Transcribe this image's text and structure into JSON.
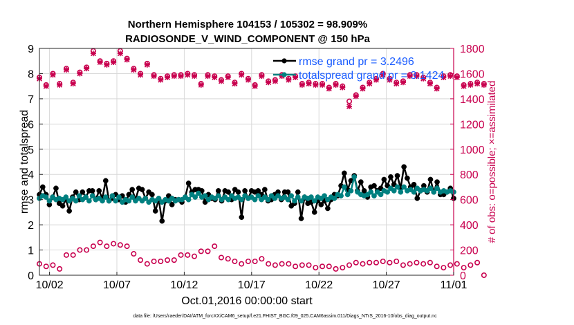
{
  "title_line1": "Northern Hemisphere 104153 / 105302 = 98.909%",
  "title_line2": "RADIOSONDE_V_WIND_COMPONENT @ 150 hPa",
  "xlabel": "Oct.01,2016 00:00:00 start",
  "ylabel_left": "rmse and totalspread",
  "ylabel_right": "# of obs: o=possible; ×=assimilated",
  "footer": "data file: /Users/raeder/DAI/ATM_forcXX/CAM6_setup/f.e21.FHIST_BGC.f09_025.CAM6assim.011/Diags_NTrS_2016-10/obs_diag_output.nc",
  "colors": {
    "rmse": "#000000",
    "spread": "#008080",
    "obs": "#c8004e",
    "legend_text": "#1a5cff"
  },
  "chart_data": {
    "type": "line",
    "x_ticks": [
      {
        "label": "10/02",
        "day": 2
      },
      {
        "label": "10/07",
        "day": 7
      },
      {
        "label": "10/12",
        "day": 12
      },
      {
        "label": "10/17",
        "day": 17
      },
      {
        "label": "10/22",
        "day": 22
      },
      {
        "label": "10/27",
        "day": 27
      },
      {
        "label": "11/01",
        "day": 32
      }
    ],
    "xlim": [
      1.25,
      32.0
    ],
    "ylim_left": [
      0,
      9
    ],
    "yticks_left": [
      0,
      1,
      2,
      3,
      4,
      5,
      6,
      7,
      8,
      9
    ],
    "ylim_right": [
      0,
      1800
    ],
    "yticks_right": [
      0,
      200,
      400,
      600,
      800,
      1000,
      1200,
      1400,
      1600,
      1800
    ],
    "legend_position": "top-right",
    "series": [
      {
        "name": "rmse grand pr = 3.2496",
        "axis": "left",
        "values": [
          3.2,
          3.5,
          3.2,
          2.8,
          3.1,
          3.45,
          2.85,
          2.75,
          3.0,
          2.55,
          3.1,
          3.3,
          3.0,
          3.3,
          3.1,
          3.35,
          3.35,
          3.0,
          3.35,
          3.05,
          3.75,
          2.95,
          3.05,
          3.2,
          3.0,
          3.15,
          2.9,
          3.2,
          3.4,
          3.0,
          3.45,
          3.4,
          3.05,
          3.3,
          3.2,
          2.55,
          3.0,
          2.15,
          2.95,
          3.15,
          2.8,
          3.0,
          3.0,
          2.9,
          3.1,
          3.65,
          3.3,
          3.4,
          3.4,
          3.35,
          2.9,
          3.2,
          3.05,
          3.0,
          3.35,
          2.95,
          3.35,
          3.3,
          3.0,
          3.4,
          3.3,
          2.3,
          3.35,
          3.05,
          3.35,
          3.3,
          3.35,
          3.2,
          3.4,
          2.95,
          3.0,
          3.2,
          3.3,
          3.0,
          3.3,
          3.3,
          2.75,
          2.85,
          3.3,
          2.25,
          3.1,
          2.85,
          2.9,
          2.5,
          2.95,
          2.8,
          2.95,
          2.65,
          3.0,
          3.2,
          3.15,
          3.55,
          4.05,
          3.4,
          3.75,
          3.95,
          3.35,
          3.7,
          3.35,
          3.1,
          3.5,
          3.55,
          3.35,
          3.45,
          3.8,
          3.55,
          3.9,
          3.6,
          3.95,
          3.45,
          4.3,
          3.85,
          3.5,
          3.6,
          3.05,
          3.35,
          3.55,
          3.3,
          3.8,
          3.3,
          3.7,
          3.2,
          3.2,
          3.3,
          3.45,
          3.05
        ],
        "stroke_width": 2.5
      },
      {
        "name": "totalspread grand pr = 3.1424",
        "axis": "left",
        "values": [
          3.05,
          3.15,
          3.1,
          2.95,
          3.1,
          3.0,
          3.05,
          3.0,
          3.1,
          2.95,
          3.05,
          2.95,
          3.15,
          3.0,
          3.1,
          2.95,
          3.15,
          3.0,
          3.05,
          2.95,
          3.1,
          2.95,
          3.15,
          2.95,
          3.1,
          2.9,
          3.0,
          2.95,
          3.1,
          2.95,
          3.05,
          2.95,
          3.05,
          2.9,
          3.0,
          2.95,
          3.05,
          2.9,
          3.0,
          2.95,
          3.05,
          2.95,
          3.0,
          3.0,
          3.1,
          3.0,
          3.2,
          3.1,
          3.25,
          3.1,
          3.15,
          3.0,
          3.1,
          3.05,
          3.15,
          3.0,
          3.1,
          3.0,
          3.15,
          3.05,
          3.1,
          3.0,
          3.15,
          3.05,
          3.1,
          3.0,
          3.15,
          3.0,
          3.1,
          3.0,
          3.15,
          3.05,
          3.15,
          3.05,
          3.1,
          3.0,
          3.15,
          2.95,
          3.1,
          2.95,
          3.1,
          3.05,
          3.1,
          2.95,
          3.1,
          3.05,
          3.15,
          3.0,
          3.1,
          3.05,
          3.2,
          3.15,
          3.5,
          3.2,
          3.35,
          3.9,
          3.3,
          3.2,
          3.15,
          3.2,
          3.3,
          3.15,
          3.3,
          3.2,
          3.35,
          3.3,
          3.45,
          3.35,
          3.5,
          3.3,
          3.5,
          3.35,
          3.4,
          3.3,
          3.45,
          3.35,
          3.4,
          3.35,
          3.45,
          3.3,
          3.45,
          3.3,
          3.35,
          3.3,
          3.35,
          3.3
        ],
        "stroke_width": 2.5
      },
      {
        "name": "obs possible",
        "axis": "right",
        "marker": "circle",
        "values": [
          1570,
          1510,
          1600,
          1520,
          1640,
          1530,
          1610,
          1650,
          1780,
          1700,
          1680,
          1700,
          1780,
          1720,
          1640,
          1600,
          1680,
          1590,
          1560,
          1580,
          1590,
          1590,
          1600,
          1590,
          1520,
          1590,
          1580,
          1550,
          1580,
          1530,
          1600,
          1560,
          1510,
          1590,
          1540,
          1550,
          1590,
          1560,
          1580,
          1520,
          1530,
          1520,
          1520,
          1490,
          1520,
          1500,
          1380,
          1430,
          1490,
          1530,
          1560,
          1600,
          1560,
          1530,
          1540,
          1590,
          1590,
          1570,
          1530,
          1490,
          1580,
          1590,
          1580,
          1510,
          1520,
          1530,
          1520
        ],
        "x_start": 1.25,
        "x_step": 0.5
      },
      {
        "name": "obs assimilated",
        "axis": "right",
        "marker": "x",
        "values": [
          1560,
          1500,
          1590,
          1510,
          1630,
          1520,
          1600,
          1640,
          1760,
          1690,
          1670,
          1690,
          1760,
          1710,
          1630,
          1590,
          1670,
          1580,
          1550,
          1570,
          1580,
          1580,
          1590,
          1580,
          1510,
          1580,
          1570,
          1540,
          1570,
          1520,
          1590,
          1550,
          1500,
          1580,
          1530,
          1540,
          1580,
          1550,
          1570,
          1510,
          1520,
          1510,
          1510,
          1480,
          1510,
          1490,
          1340,
          1420,
          1480,
          1520,
          1550,
          1590,
          1550,
          1520,
          1530,
          1580,
          1580,
          1560,
          1520,
          1480,
          1570,
          1580,
          1570,
          1500,
          1510,
          1520,
          1510
        ],
        "x_start": 1.25,
        "x_step": 0.5
      },
      {
        "name": "obs possible low",
        "axis": "right",
        "marker": "circle",
        "values": [
          90,
          70,
          80,
          50,
          160,
          160,
          200,
          200,
          230,
          260,
          230,
          250,
          240,
          230,
          170,
          120,
          90,
          110,
          110,
          120,
          120,
          160,
          160,
          150,
          190,
          190,
          230,
          140,
          130,
          110,
          90,
          110,
          110,
          130,
          90,
          80,
          90,
          90,
          70,
          80,
          80,
          60,
          70,
          70,
          50,
          60,
          80,
          100,
          90,
          100,
          100,
          110,
          100,
          110,
          80,
          90,
          100,
          90,
          100,
          70,
          60,
          80,
          90,
          60,
          80,
          100,
          0
        ],
        "x_start": 1.25,
        "x_step": 0.5
      }
    ]
  }
}
